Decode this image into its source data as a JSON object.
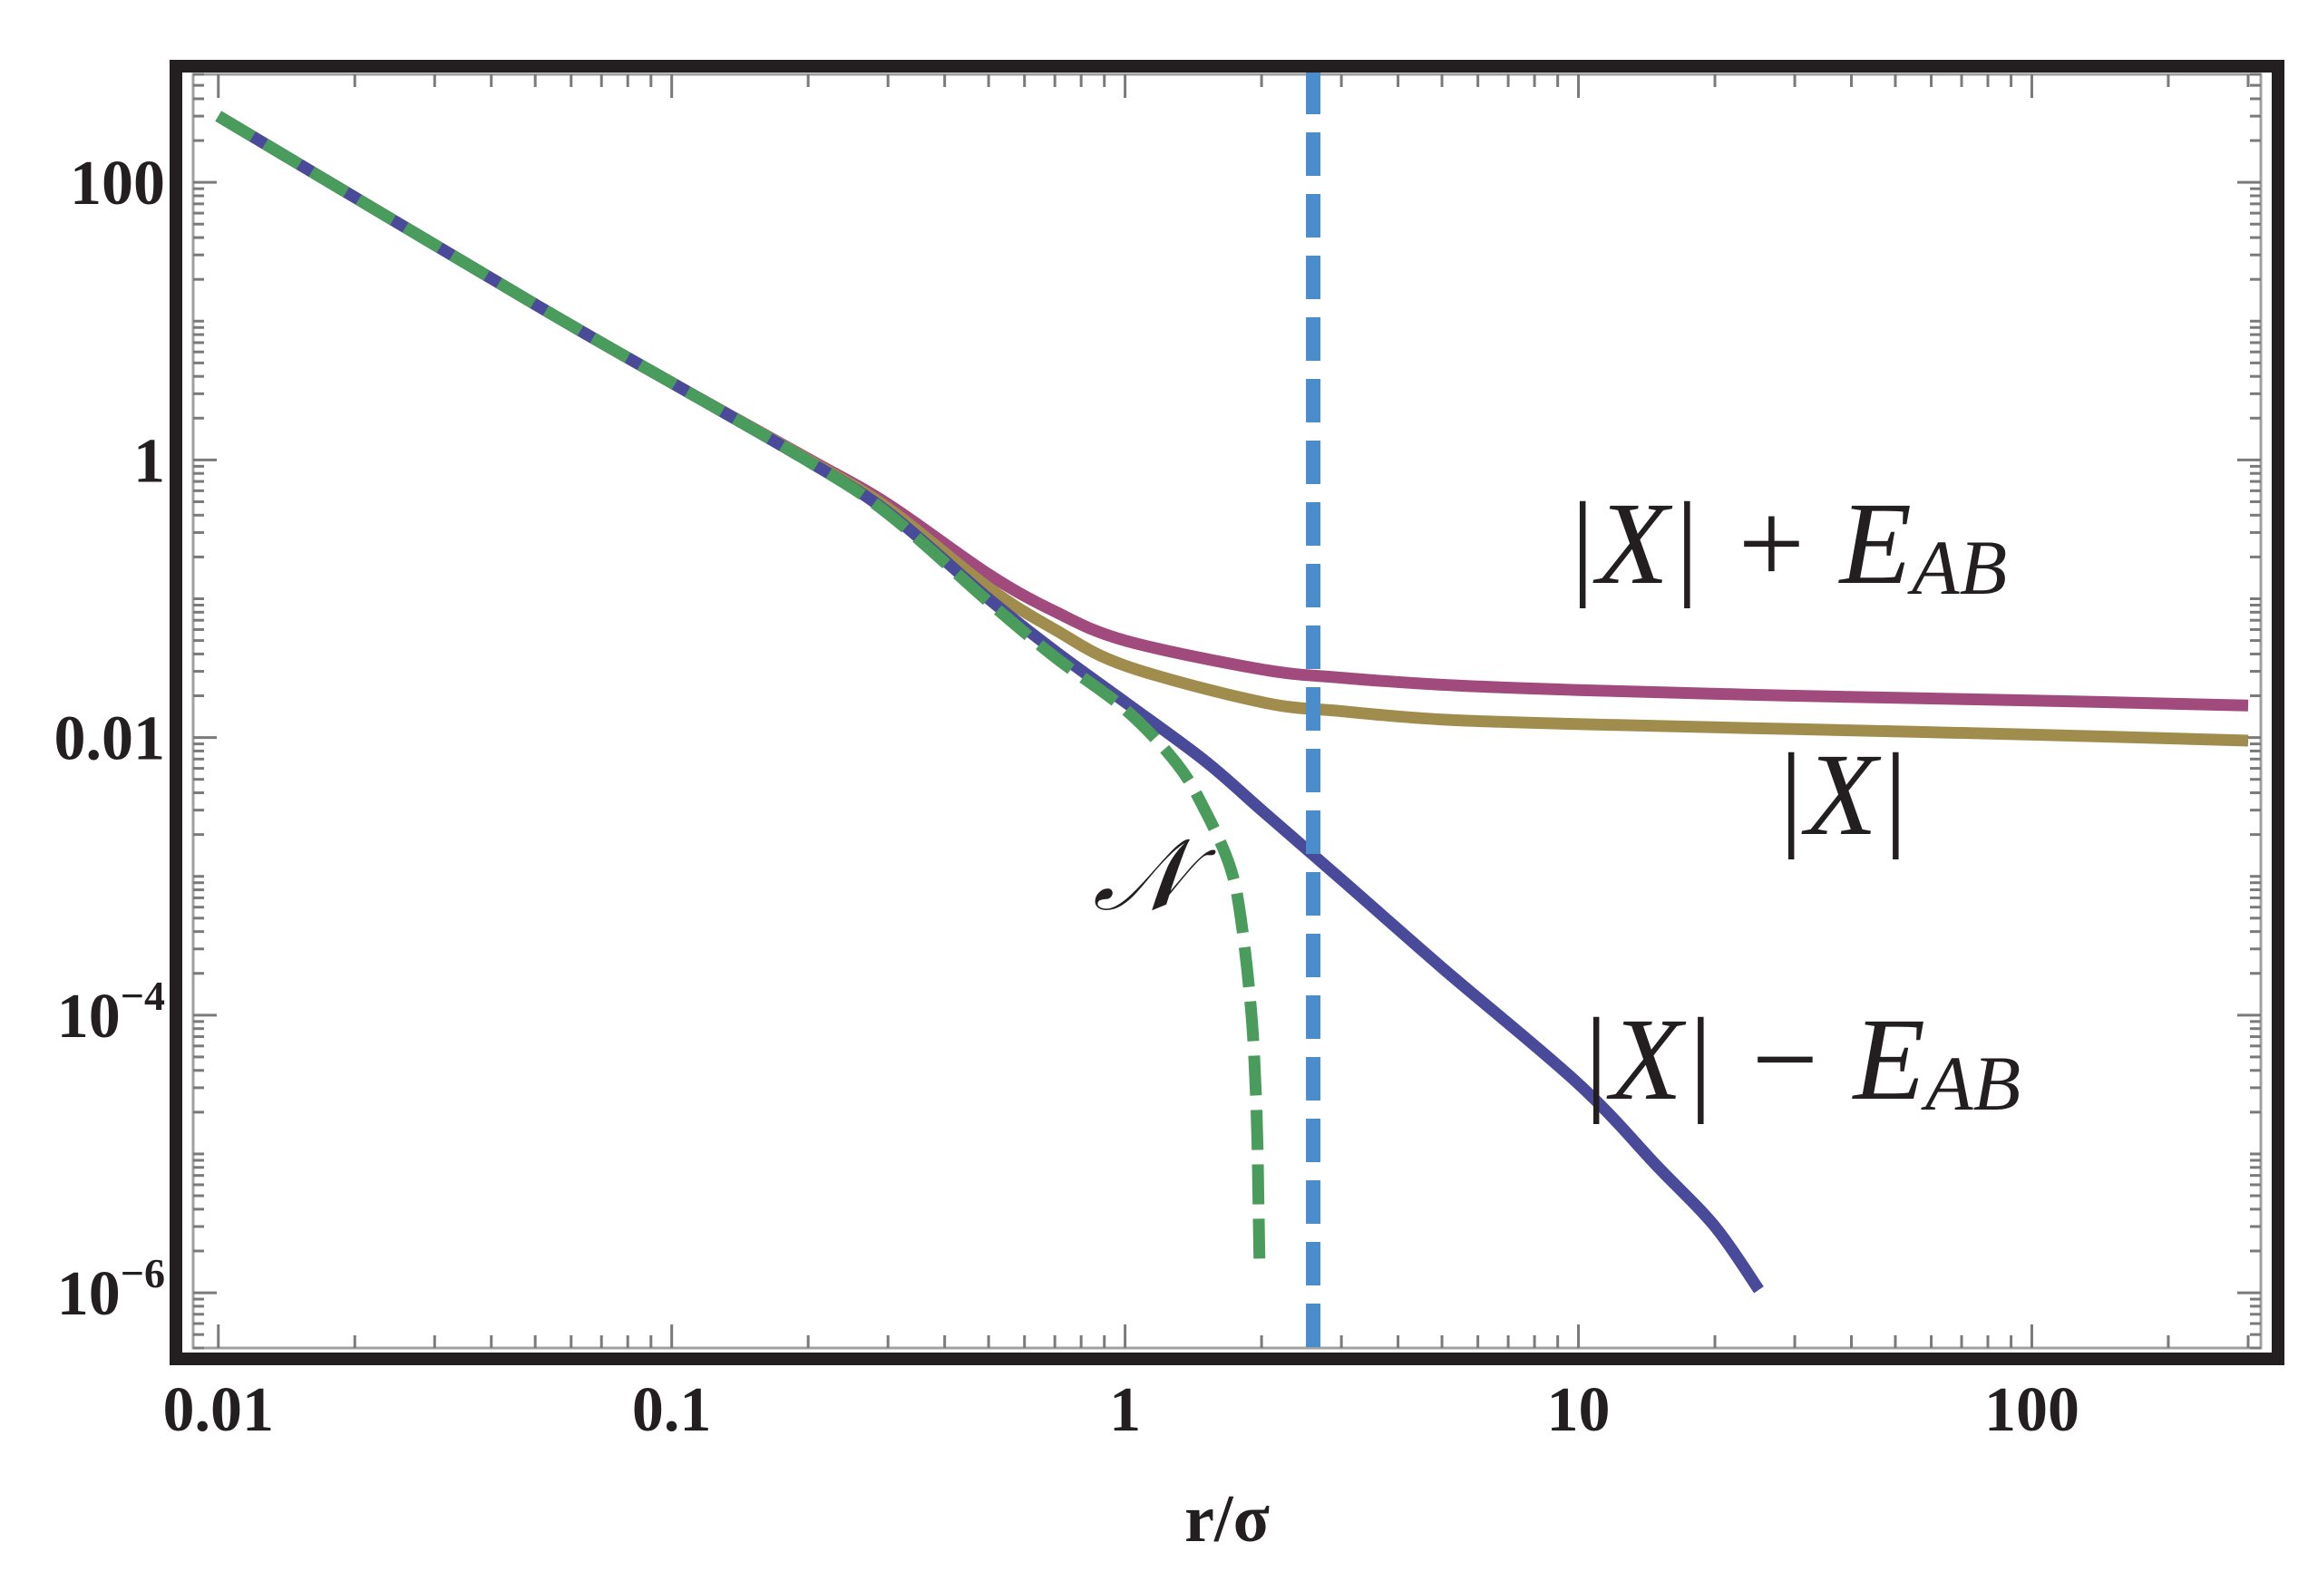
{
  "chart_data": {
    "type": "line",
    "xscale": "log",
    "yscale": "log",
    "xlim": [
      0.0088,
      320
    ],
    "ylim": [
      4e-07,
      600
    ],
    "xlabel": "r/σ",
    "ylabel": "",
    "grid": false,
    "x_ticks": [
      {
        "value": 0.01,
        "label": "0.01"
      },
      {
        "value": 0.1,
        "label": "0.1"
      },
      {
        "value": 1,
        "label": "1"
      },
      {
        "value": 10,
        "label": "10"
      },
      {
        "value": 100,
        "label": "100"
      }
    ],
    "y_ticks": [
      {
        "value": 100,
        "base": "100",
        "exp": ""
      },
      {
        "value": 1,
        "base": "1",
        "exp": ""
      },
      {
        "value": 0.01,
        "base": "0.01",
        "exp": ""
      },
      {
        "value": 0.0001,
        "base": "10",
        "exp": "−4"
      },
      {
        "value": 1e-06,
        "base": "10",
        "exp": "−6"
      }
    ],
    "series": [
      {
        "name": "|X| + E_AB",
        "color": "#a04a7e",
        "style": "solid",
        "points": [
          [
            0.01,
            300
          ],
          [
            0.05,
            13.2
          ],
          [
            0.1,
            3.6
          ],
          [
            0.2,
            1.02
          ],
          [
            0.3,
            0.48
          ],
          [
            0.5,
            0.15
          ],
          [
            0.7,
            0.081
          ],
          [
            1,
            0.05
          ],
          [
            2,
            0.031
          ],
          [
            3,
            0.027
          ],
          [
            5,
            0.024
          ],
          [
            10,
            0.022
          ],
          [
            30,
            0.02
          ],
          [
            100,
            0.0185
          ],
          [
            300,
            0.017
          ]
        ]
      },
      {
        "name": "|X|",
        "color": "#a08c4c",
        "style": "solid",
        "points": [
          [
            0.01,
            300
          ],
          [
            0.05,
            13.2
          ],
          [
            0.1,
            3.6
          ],
          [
            0.2,
            1.0
          ],
          [
            0.3,
            0.45
          ],
          [
            0.5,
            0.12
          ],
          [
            0.7,
            0.06
          ],
          [
            1,
            0.033
          ],
          [
            2,
            0.018
          ],
          [
            3,
            0.0155
          ],
          [
            5,
            0.0135
          ],
          [
            10,
            0.0125
          ],
          [
            30,
            0.0115
          ],
          [
            100,
            0.0105
          ],
          [
            300,
            0.0095
          ]
        ]
      },
      {
        "name": "|X| − E_AB",
        "color": "#4a4a9a",
        "style": "solid",
        "points": [
          [
            0.01,
            300
          ],
          [
            0.05,
            13.2
          ],
          [
            0.1,
            3.6
          ],
          [
            0.2,
            0.98
          ],
          [
            0.3,
            0.42
          ],
          [
            0.5,
            0.1
          ],
          [
            0.7,
            0.042
          ],
          [
            1,
            0.018
          ],
          [
            1.5,
            0.0068
          ],
          [
            2,
            0.003
          ],
          [
            3,
            0.00095
          ],
          [
            5,
            0.00022
          ],
          [
            10,
            3.2e-05
          ],
          [
            15,
            8e-06
          ],
          [
            20,
            3e-06
          ],
          [
            25,
            1.05e-06
          ]
        ]
      },
      {
        "name": "𝒩",
        "color": "#4a9c5c",
        "style": "dashed",
        "points": [
          [
            0.01,
            300
          ],
          [
            0.05,
            13.2
          ],
          [
            0.1,
            3.6
          ],
          [
            0.2,
            0.98
          ],
          [
            0.3,
            0.41
          ],
          [
            0.5,
            0.095
          ],
          [
            0.7,
            0.038
          ],
          [
            1,
            0.016
          ],
          [
            1.3,
            0.0065
          ],
          [
            1.5,
            0.003
          ],
          [
            1.7,
            0.0012
          ],
          [
            1.8,
            0.0005
          ],
          [
            1.9,
            0.0001
          ],
          [
            1.95,
            2e-05
          ],
          [
            1.97,
            4e-06
          ],
          [
            1.98,
            1.5e-06
          ]
        ]
      },
      {
        "name": "",
        "color": "#4a8ccc",
        "style": "dashed-vertical",
        "x": 2.6
      }
    ],
    "annotations": {
      "upper": {
        "base": "|X| + E",
        "sub": "AB"
      },
      "middle": {
        "base": "|X|",
        "sub": ""
      },
      "lower": {
        "base": "|X| − E",
        "sub": "AB"
      },
      "n": {
        "base": "𝒩",
        "sub": ""
      }
    }
  }
}
